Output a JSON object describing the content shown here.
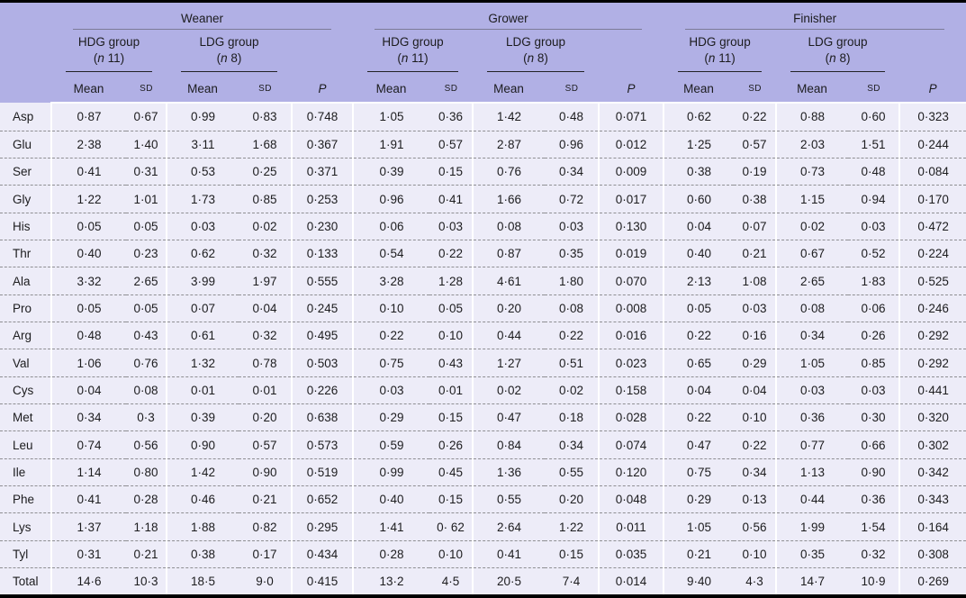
{
  "colors": {
    "header_bg": "#b1b0e5",
    "body_bg": "#edecf8",
    "top_rule": "#000000",
    "bottom_rule": "#000000",
    "row_separator": "#8f8f93",
    "stage_rule": "#7c7b97",
    "group_rule": "#222226"
  },
  "header": {
    "stages": [
      {
        "label": "Weaner",
        "groups": [
          {
            "name": "HDG group",
            "paren_open": "(",
            "n": "n",
            "count": "11)"
          },
          {
            "name": "LDG group",
            "paren_open": "(",
            "n": "n",
            "count": "8)"
          }
        ]
      },
      {
        "label": "Grower",
        "groups": [
          {
            "name": "HDG group",
            "paren_open": "(",
            "n": "n",
            "count": "11)"
          },
          {
            "name": "LDG group",
            "paren_open": "(",
            "n": "n",
            "count": "8)"
          }
        ]
      },
      {
        "label": "Finisher",
        "groups": [
          {
            "name": "HDG group",
            "paren_open": "(",
            "n": "n",
            "count": "11)"
          },
          {
            "name": "LDG group",
            "paren_open": "(",
            "n": "n",
            "count": "8)"
          }
        ]
      }
    ],
    "cols": {
      "mean": "Mean",
      "sd": "SD",
      "p": "P"
    }
  },
  "rows": [
    {
      "label": "Asp",
      "values": [
        "0·87",
        "0·67",
        "0·99",
        "0·83",
        "0·748",
        "1·05",
        "0·36",
        "1·42",
        "0·48",
        "0·071",
        "0·62",
        "0·22",
        "0·88",
        "0·60",
        "0·323"
      ]
    },
    {
      "label": "Glu",
      "values": [
        "2·38",
        "1·40",
        "3·11",
        "1·68",
        "0·367",
        "1·91",
        "0·57",
        "2·87",
        "0·96",
        "0·012",
        "1·25",
        "0·57",
        "2·03",
        "1·51",
        "0·244"
      ]
    },
    {
      "label": "Ser",
      "values": [
        "0·41",
        "0·31",
        "0·53",
        "0·25",
        "0·371",
        "0·39",
        "0·15",
        "0·76",
        "0·34",
        "0·009",
        "0·38",
        "0·19",
        "0·73",
        "0·48",
        "0·084"
      ]
    },
    {
      "label": "Gly",
      "values": [
        "1·22",
        "1·01",
        "1·73",
        "0·85",
        "0·253",
        "0·96",
        "0·41",
        "1·66",
        "0·72",
        "0·017",
        "0·60",
        "0·38",
        "1·15",
        "0·94",
        "0·170"
      ]
    },
    {
      "label": "His",
      "values": [
        "0·05",
        "0·05",
        "0·03",
        "0·02",
        "0·230",
        "0·06",
        "0·03",
        "0·08",
        "0·03",
        "0·130",
        "0·04",
        "0·07",
        "0·02",
        "0·03",
        "0·472"
      ]
    },
    {
      "label": "Thr",
      "values": [
        "0·40",
        "0·23",
        "0·62",
        "0·32",
        "0·133",
        "0·54",
        "0·22",
        "0·87",
        "0·35",
        "0·019",
        "0·40",
        "0·21",
        "0·67",
        "0·52",
        "0·224"
      ]
    },
    {
      "label": "Ala",
      "values": [
        "3·32",
        "2·65",
        "3·99",
        "1·97",
        "0·555",
        "3·28",
        "1·28",
        "4·61",
        "1·80",
        "0·070",
        "2·13",
        "1·08",
        "2·65",
        "1·83",
        "0·525"
      ]
    },
    {
      "label": "Pro",
      "values": [
        "0·05",
        "0·05",
        "0·07",
        "0·04",
        "0·245",
        "0·10",
        "0·05",
        "0·20",
        "0·08",
        "0·008",
        "0·05",
        "0·03",
        "0·08",
        "0·06",
        "0·246"
      ]
    },
    {
      "label": "Arg",
      "values": [
        "0·48",
        "0·43",
        "0·61",
        "0·32",
        "0·495",
        "0·22",
        "0·10",
        "0·44",
        "0·22",
        "0·016",
        "0·22",
        "0·16",
        "0·34",
        "0·26",
        "0·292"
      ]
    },
    {
      "label": "Val",
      "values": [
        "1·06",
        "0·76",
        "1·32",
        "0·78",
        "0·503",
        "0·75",
        "0·43",
        "1·27",
        "0·51",
        "0·023",
        "0·65",
        "0·29",
        "1·05",
        "0·85",
        "0·292"
      ]
    },
    {
      "label": "Cys",
      "values": [
        "0·04",
        "0·08",
        "0·01",
        "0·01",
        "0·226",
        "0·03",
        "0·01",
        "0·02",
        "0·02",
        "0·158",
        "0·04",
        "0·04",
        "0·03",
        "0·03",
        "0·441"
      ]
    },
    {
      "label": "Met",
      "values": [
        "0·34",
        "0·3",
        "0·39",
        "0·20",
        "0·638",
        "0·29",
        "0·15",
        "0·47",
        "0·18",
        "0·028",
        "0·22",
        "0·10",
        "0·36",
        "0·30",
        "0·320"
      ]
    },
    {
      "label": "Leu",
      "values": [
        "0·74",
        "0·56",
        "0·90",
        "0·57",
        "0·573",
        "0·59",
        "0·26",
        "0·84",
        "0·34",
        "0·074",
        "0·47",
        "0·22",
        "0·77",
        "0·66",
        "0·302"
      ]
    },
    {
      "label": "Ile",
      "values": [
        "1·14",
        "0·80",
        "1·42",
        "0·90",
        "0·519",
        "0·99",
        "0·45",
        "1·36",
        "0·55",
        "0·120",
        "0·75",
        "0·34",
        "1·13",
        "0·90",
        "0·342"
      ]
    },
    {
      "label": "Phe",
      "values": [
        "0·41",
        "0·28",
        "0·46",
        "0·21",
        "0·652",
        "0·40",
        "0·15",
        "0·55",
        "0·20",
        "0·048",
        "0·29",
        "0·13",
        "0·44",
        "0·36",
        "0·343"
      ]
    },
    {
      "label": "Lys",
      "values": [
        "1·37",
        "1·18",
        "1·88",
        "0·82",
        "0·295",
        "1·41",
        "0· 62",
        "2·64",
        "1·22",
        "0·011",
        "1·05",
        "0·56",
        "1·99",
        "1·54",
        "0·164"
      ]
    },
    {
      "label": "Tyl",
      "values": [
        "0·31",
        "0·21",
        "0·38",
        "0·17",
        "0·434",
        "0·28",
        "0·10",
        "0·41",
        "0·15",
        "0·035",
        "0·21",
        "0·10",
        "0·35",
        "0·32",
        "0·308"
      ]
    },
    {
      "label": "Total",
      "values": [
        "14·6",
        "10·3",
        "18·5",
        "9·0",
        "0·415",
        "13·2",
        "4·5",
        "20·5",
        "7·4",
        "0·014",
        "9·40",
        "4·3",
        "14·7",
        "10·9",
        "0·269"
      ]
    }
  ]
}
